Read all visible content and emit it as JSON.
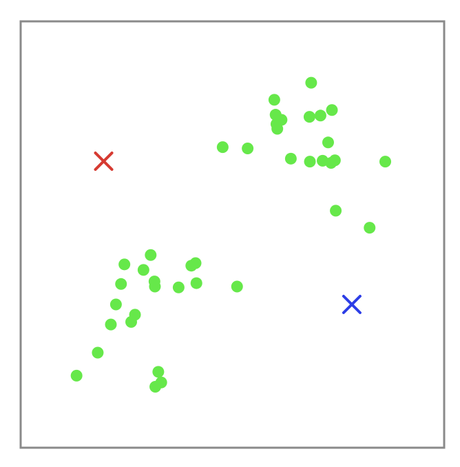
{
  "chart_data": {
    "type": "scatter",
    "title": "",
    "xlabel": "",
    "ylabel": "",
    "xlim": [
      0,
      100
    ],
    "ylim": [
      0,
      100
    ],
    "grid": false,
    "legend": "none",
    "series": [
      {
        "marker": "circle",
        "color": "#66e84a",
        "points": [
          [
            13.2,
            16.9
          ],
          [
            18.2,
            22.3
          ],
          [
            21.3,
            28.9
          ],
          [
            22.5,
            33.6
          ],
          [
            23.7,
            38.4
          ],
          [
            24.5,
            43.0
          ],
          [
            26.1,
            29.5
          ],
          [
            27.0,
            31.2
          ],
          [
            29.0,
            41.7
          ],
          [
            30.7,
            45.2
          ],
          [
            31.8,
            14.3
          ],
          [
            32.5,
            17.8
          ],
          [
            31.7,
            37.8
          ],
          [
            31.6,
            39.0
          ],
          [
            33.2,
            15.3
          ],
          [
            37.3,
            37.6
          ],
          [
            40.3,
            42.7
          ],
          [
            41.3,
            43.3
          ],
          [
            41.5,
            38.6
          ],
          [
            51.1,
            37.8
          ],
          [
            47.7,
            70.5
          ],
          [
            53.6,
            70.2
          ],
          [
            59.9,
            81.6
          ],
          [
            60.2,
            78.1
          ],
          [
            60.4,
            75.9
          ],
          [
            61.6,
            76.9
          ],
          [
            60.6,
            74.8
          ],
          [
            63.8,
            67.8
          ],
          [
            68.3,
            67.1
          ],
          [
            68.6,
            85.6
          ],
          [
            68.2,
            77.6
          ],
          [
            70.8,
            77.9
          ],
          [
            73.5,
            79.2
          ],
          [
            72.6,
            71.6
          ],
          [
            71.3,
            67.3
          ],
          [
            73.3,
            66.8
          ],
          [
            74.2,
            67.4
          ],
          [
            74.4,
            55.6
          ],
          [
            82.4,
            51.6
          ],
          [
            86.1,
            67.1
          ]
        ]
      },
      {
        "marker": "x",
        "color": "#d63a31",
        "points": [
          [
            19.6,
            67.2
          ]
        ]
      },
      {
        "marker": "x",
        "color": "#2d3ee6",
        "points": [
          [
            78.2,
            33.6
          ]
        ]
      }
    ]
  }
}
